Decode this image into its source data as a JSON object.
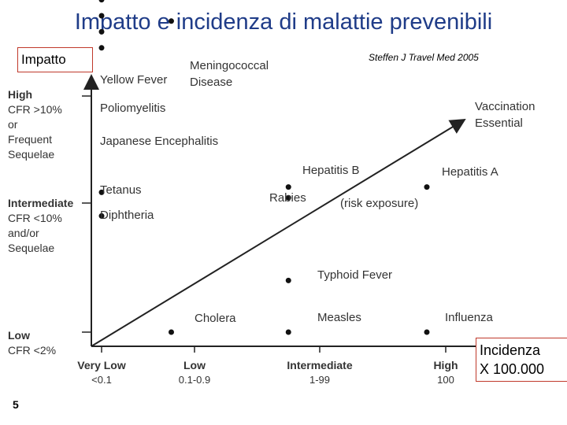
{
  "title": "Impatto e incidenza di malattie prevenibili",
  "source": "Steffen J Travel Med  2005",
  "slide_number": "5",
  "axis_boxes": {
    "y": "Impatto",
    "x_line1": "Incidenza",
    "x_line2": "X 100.000"
  },
  "chart_data": {
    "type": "scatter",
    "title": "Impatto e incidenza di malattie prevenibili",
    "xlabel": "Incidenza X 100.000",
    "ylabel": "Impatto",
    "x_ticks": [
      {
        "name": "Very Low",
        "range": "<0.1"
      },
      {
        "name": "Low",
        "range": "0.1-0.9"
      },
      {
        "name": "Intermediate",
        "range": "1-99"
      },
      {
        "name": "High",
        "range": "100"
      }
    ],
    "y_ticks": [
      {
        "lines": [
          "High",
          "CFR >10%",
          "or",
          "Frequent",
          "Sequelae"
        ]
      },
      {
        "lines": [
          "Intermediate",
          "CFR <10%",
          "and/or",
          "Sequelae"
        ]
      },
      {
        "lines": [
          "Low",
          "CFR <2%"
        ]
      }
    ],
    "arrow_label": [
      "Vaccination",
      "Essential"
    ],
    "annotation": "(risk exposure)",
    "points": [
      {
        "label": "Meningococcal Disease",
        "x": 0.75,
        "y": 2.7
      },
      {
        "label": "Yellow Fever",
        "x": 0,
        "y": 2.9
      },
      {
        "label": "Poliomyelitis",
        "x": 0,
        "y": 2.75
      },
      {
        "label": "",
        "x": 0,
        "y": 2.6
      },
      {
        "label": "Japanese Encephalitis",
        "x": 0,
        "y": 2.45
      },
      {
        "label": "Tetanus",
        "x": 0,
        "y": 1.1
      },
      {
        "label": "Diphtheria",
        "x": 0,
        "y": 0.9
      },
      {
        "label": "Hepatitis B",
        "x": 1.75,
        "y": 1.15
      },
      {
        "label": "Rabies",
        "x": 1.75,
        "y": 1.05
      },
      {
        "label": "Hepatitis A",
        "x": 2.85,
        "y": 1.15
      },
      {
        "label": "Typhoid Fever",
        "x": 1.75,
        "y": 0.4
      },
      {
        "label": "Cholera",
        "x": 0.75,
        "y": 0
      },
      {
        "label": "Measles",
        "x": 1.75,
        "y": 0
      },
      {
        "label": "Influenza",
        "x": 2.85,
        "y": 0
      }
    ]
  }
}
